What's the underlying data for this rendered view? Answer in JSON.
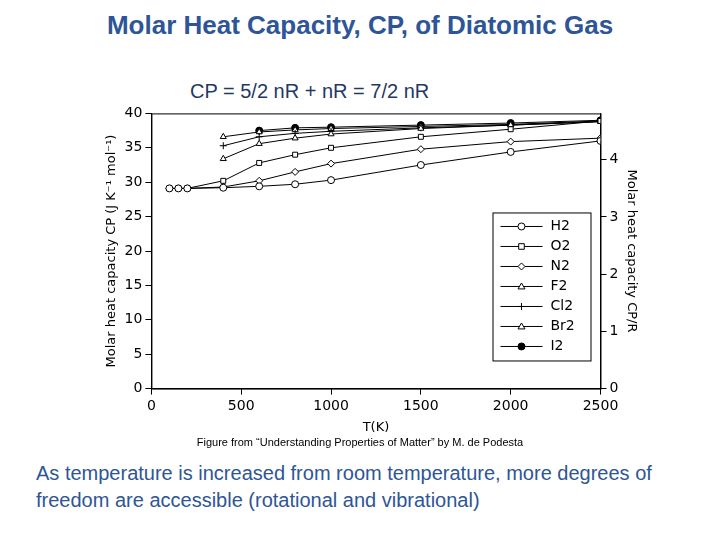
{
  "chart_data": {
    "type": "line",
    "title": "Molar Heat Capacity, CP, of Diatomic Gas",
    "subtitle": "CP = 5/2 nR + nR = 7/2 nR",
    "annotations": [
      "Figure from “Understanding Properties of Matter” by  M. de Podesta",
      "As temperature is increased from room temperature, more degrees of freedom are accessible (rotational and vibrational)"
    ],
    "xlabel": "T(K)",
    "ylabel": "Molar heat capacity CP (J K⁻¹ mol⁻¹)",
    "y2label": "Molar heat capacity CP/R",
    "x": [
      100,
      150,
      200,
      400,
      600,
      800,
      1000,
      1500,
      2000,
      2500
    ],
    "series": [
      {
        "name": "H2",
        "color": "#000000",
        "marker": "circle",
        "line_style": "solid",
        "values": [
          29.1,
          29.1,
          29.1,
          29.2,
          29.4,
          29.7,
          30.3,
          32.5,
          34.4,
          36.0
        ]
      },
      {
        "name": "O2",
        "color": "#000000",
        "marker": "square",
        "line_style": "solid",
        "values": [
          29.1,
          29.1,
          29.1,
          30.2,
          32.8,
          34.0,
          35.0,
          36.6,
          37.7,
          38.9
        ]
      },
      {
        "name": "N2",
        "color": "#000000",
        "marker": "diamond",
        "line_style": "solid",
        "values": [
          29.1,
          29.1,
          29.1,
          29.3,
          30.2,
          31.5,
          32.7,
          34.8,
          35.9,
          36.4
        ]
      },
      {
        "name": "F2",
        "color": "#000000",
        "marker": "triangle",
        "line_style": "solid",
        "values": [
          null,
          null,
          null,
          33.4,
          35.6,
          36.4,
          37.0,
          37.8,
          38.3,
          38.8
        ]
      },
      {
        "name": "Cl2",
        "color": "#000000",
        "marker": "plus",
        "line_style": "solid",
        "values": [
          null,
          null,
          null,
          35.3,
          36.6,
          37.1,
          37.4,
          37.9,
          38.3,
          38.8
        ]
      },
      {
        "name": "Br2",
        "color": "#000000",
        "marker": "triangle",
        "line_style": "solid",
        "values": [
          null,
          null,
          null,
          36.6,
          37.3,
          37.6,
          37.8,
          38.1,
          38.4,
          38.9
        ]
      },
      {
        "name": "I2",
        "color": "#000000",
        "marker": "filled_circle",
        "line_style": "solid",
        "values": [
          null,
          null,
          null,
          null,
          37.5,
          37.9,
          38.0,
          38.3,
          38.6,
          39.0
        ]
      }
    ],
    "xlim": [
      0,
      2500
    ],
    "xticks": [
      0,
      500,
      1000,
      1500,
      2000,
      2500
    ],
    "ylim": [
      0,
      40
    ],
    "yticks": [
      0,
      5,
      10,
      15,
      20,
      25,
      30,
      35,
      40
    ],
    "y2lim": [
      0,
      4.811
    ],
    "y2ticks": [
      0,
      1,
      2,
      3,
      4
    ],
    "grid": false,
    "legend": "right"
  }
}
